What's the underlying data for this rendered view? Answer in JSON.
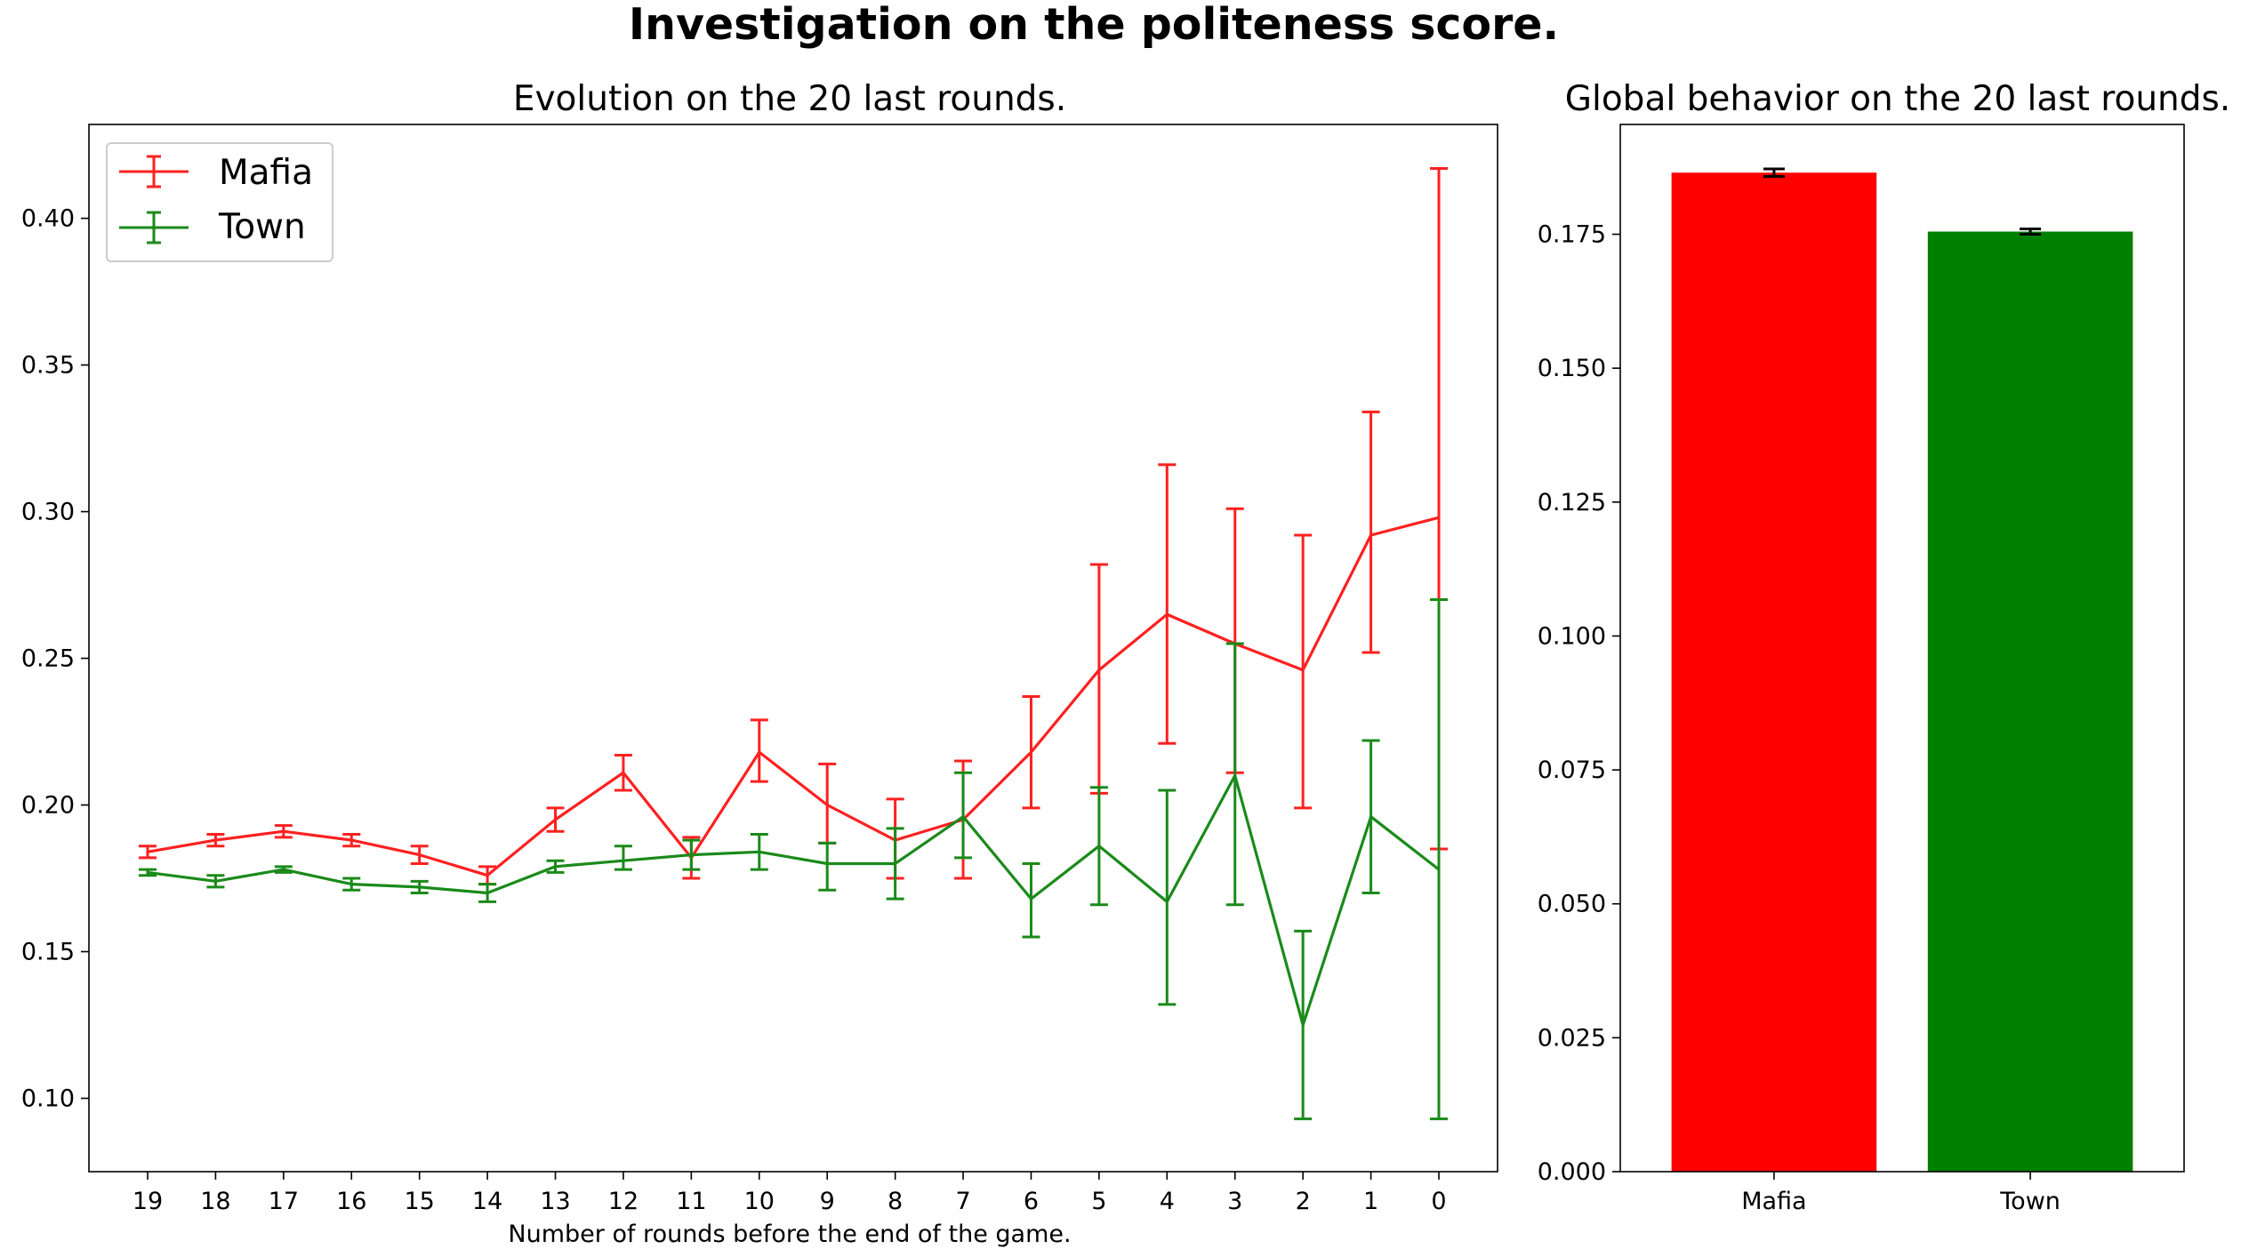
{
  "figure": {
    "title": "Investigation on the politeness score."
  },
  "chart_data": [
    {
      "type": "line",
      "title": "Evolution on the 20 last rounds.",
      "xlabel": "Number of rounds before the end of the game.",
      "ylabel": "",
      "ylim": [
        0.075,
        0.432
      ],
      "yticks": [
        0.1,
        0.15,
        0.2,
        0.25,
        0.3,
        0.35,
        0.4
      ],
      "ytick_labels": [
        "0.10",
        "0.15",
        "0.20",
        "0.25",
        "0.30",
        "0.35",
        "0.40"
      ],
      "x": [
        19,
        18,
        17,
        16,
        15,
        14,
        13,
        12,
        11,
        10,
        9,
        8,
        7,
        6,
        5,
        4,
        3,
        2,
        1,
        0
      ],
      "x_labels": [
        "19",
        "18",
        "17",
        "16",
        "15",
        "14",
        "13",
        "12",
        "11",
        "10",
        "9",
        "8",
        "7",
        "6",
        "5",
        "4",
        "3",
        "2",
        "1",
        "0"
      ],
      "legend": "upper-left",
      "series": [
        {
          "name": "Mafia",
          "color": "#ff2020",
          "values": [
            0.184,
            0.188,
            0.191,
            0.188,
            0.183,
            0.176,
            0.195,
            0.211,
            0.182,
            0.218,
            0.2,
            0.188,
            0.195,
            0.218,
            0.246,
            0.265,
            0.255,
            0.246,
            0.292,
            0.298
          ],
          "err_low": [
            0.182,
            0.186,
            0.189,
            0.186,
            0.18,
            0.173,
            0.191,
            0.205,
            0.175,
            0.208,
            0.187,
            0.175,
            0.175,
            0.199,
            0.204,
            0.221,
            0.211,
            0.199,
            0.252,
            0.185
          ],
          "err_high": [
            0.186,
            0.19,
            0.193,
            0.19,
            0.186,
            0.179,
            0.199,
            0.217,
            0.189,
            0.229,
            0.214,
            0.202,
            0.215,
            0.237,
            0.282,
            0.316,
            0.301,
            0.292,
            0.334,
            0.417
          ]
        },
        {
          "name": "Town",
          "color": "#1a8a1a",
          "values": [
            0.177,
            0.174,
            0.178,
            0.173,
            0.172,
            0.17,
            0.179,
            0.181,
            0.183,
            0.184,
            0.18,
            0.18,
            0.196,
            0.168,
            0.186,
            0.167,
            0.21,
            0.125,
            0.196,
            0.178
          ],
          "err_low": [
            0.176,
            0.172,
            0.177,
            0.171,
            0.17,
            0.167,
            0.177,
            0.178,
            0.178,
            0.178,
            0.171,
            0.168,
            0.182,
            0.155,
            0.166,
            0.132,
            0.166,
            0.093,
            0.17,
            0.093
          ],
          "err_high": [
            0.178,
            0.176,
            0.179,
            0.175,
            0.174,
            0.173,
            0.181,
            0.186,
            0.188,
            0.19,
            0.187,
            0.192,
            0.211,
            0.18,
            0.206,
            0.205,
            0.255,
            0.157,
            0.222,
            0.27
          ]
        }
      ]
    },
    {
      "type": "bar",
      "title": "Global behavior on the 20 last rounds.",
      "xlabel": "",
      "ylabel": "",
      "ylim": [
        0,
        0.1955
      ],
      "yticks": [
        0,
        0.025,
        0.05,
        0.075,
        0.1,
        0.125,
        0.15,
        0.175
      ],
      "ytick_labels": [
        "0.000",
        "0.025",
        "0.050",
        "0.075",
        "0.100",
        "0.125",
        "0.150",
        "0.175"
      ],
      "categories": [
        "Mafia",
        "Town"
      ],
      "values": [
        0.1865,
        0.1755
      ],
      "errors": [
        0.0007,
        0.0005
      ],
      "colors": [
        "#ff0000",
        "#008000"
      ]
    }
  ]
}
